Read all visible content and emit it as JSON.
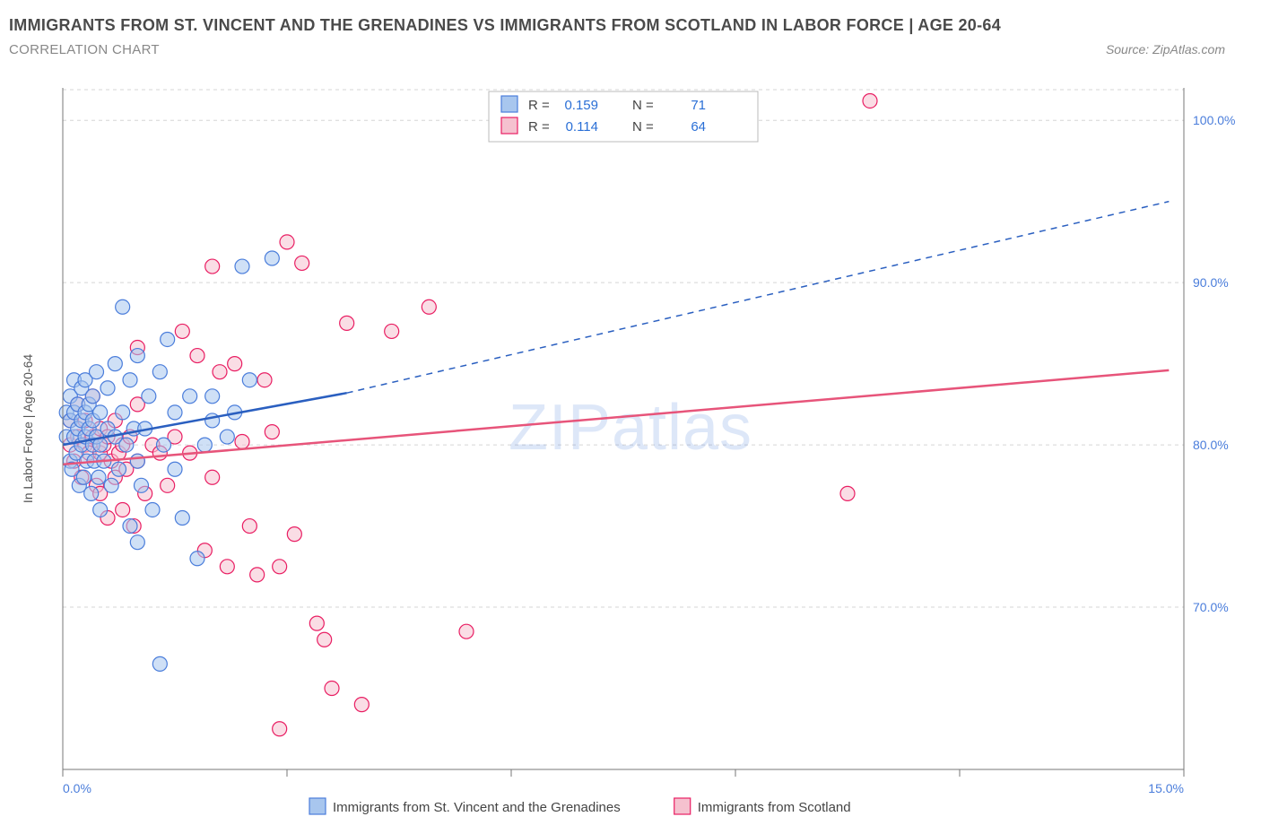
{
  "title": "IMMIGRANTS FROM ST. VINCENT AND THE GRENADINES VS IMMIGRANTS FROM SCOTLAND IN LABOR FORCE | AGE 20-64",
  "subtitle": "CORRELATION CHART",
  "source": "Source: ZipAtlas.com",
  "watermark": "ZIPatlas",
  "y_axis_label": "In Labor Force | Age 20-64",
  "colors": {
    "blue_fill": "#a8c6ee",
    "blue_stroke": "#4a7ddb",
    "blue_line": "#2a5fc0",
    "pink_fill": "#f5c1cf",
    "pink_stroke": "#e91e63",
    "pink_line": "#e7547a",
    "grid": "#d5d5d5",
    "axis": "#777777",
    "tick_text": "#4a7ddb",
    "title_text": "#4a4a4a",
    "sub_text": "#888888",
    "link_blue": "#2a6fd6"
  },
  "plot": {
    "x_domain": [
      0,
      15
    ],
    "y_domain": [
      60,
      102
    ],
    "x_ticks": [
      0,
      3,
      6,
      9,
      12,
      15
    ],
    "x_tick_labels_shown": {
      "0": "0.0%",
      "15": "15.0%"
    },
    "y_ticks": [
      70,
      80,
      90,
      100
    ],
    "y_tick_labels": {
      "70": "70.0%",
      "80": "80.0%",
      "90": "90.0%",
      "100": "100.0%"
    },
    "marker_radius": 8,
    "marker_opacity": 0.55,
    "line_width_solid": 2.5
  },
  "stats_legend": {
    "r_label": "R =",
    "n_label": "N =",
    "series": [
      {
        "key": "blue",
        "r": "0.159",
        "n": "71"
      },
      {
        "key": "pink",
        "r": "0.114",
        "n": "64"
      }
    ]
  },
  "bottom_legend": [
    {
      "key": "blue",
      "label": "Immigrants from St. Vincent and the Grenadines"
    },
    {
      "key": "pink",
      "label": "Immigrants from Scotland"
    }
  ],
  "trend_lines": {
    "blue": {
      "x1": 0.0,
      "y1": 80.0,
      "x2_solid": 3.8,
      "y2_solid": 83.2,
      "x2_dash": 14.8,
      "y2_dash": 95.0
    },
    "pink": {
      "x1": 0.0,
      "y1": 78.8,
      "x2_solid": 14.8,
      "y2_solid": 84.6
    }
  },
  "series": {
    "blue": [
      [
        0.05,
        80.5
      ],
      [
        0.05,
        82.0
      ],
      [
        0.1,
        79.0
      ],
      [
        0.1,
        81.5
      ],
      [
        0.1,
        83.0
      ],
      [
        0.12,
        78.5
      ],
      [
        0.15,
        80.5
      ],
      [
        0.15,
        82.0
      ],
      [
        0.15,
        84.0
      ],
      [
        0.18,
        79.5
      ],
      [
        0.2,
        81.0
      ],
      [
        0.2,
        82.5
      ],
      [
        0.22,
        77.5
      ],
      [
        0.25,
        80.0
      ],
      [
        0.25,
        81.5
      ],
      [
        0.25,
        83.5
      ],
      [
        0.28,
        78.0
      ],
      [
        0.3,
        80.5
      ],
      [
        0.3,
        82.0
      ],
      [
        0.3,
        84.0
      ],
      [
        0.32,
        79.0
      ],
      [
        0.35,
        81.0
      ],
      [
        0.35,
        82.5
      ],
      [
        0.38,
        77.0
      ],
      [
        0.4,
        80.0
      ],
      [
        0.4,
        81.5
      ],
      [
        0.4,
        83.0
      ],
      [
        0.42,
        79.0
      ],
      [
        0.45,
        80.5
      ],
      [
        0.45,
        84.5
      ],
      [
        0.48,
        78.0
      ],
      [
        0.5,
        76.0
      ],
      [
        0.5,
        80.0
      ],
      [
        0.5,
        82.0
      ],
      [
        0.55,
        79.0
      ],
      [
        0.6,
        81.0
      ],
      [
        0.6,
        83.5
      ],
      [
        0.65,
        77.5
      ],
      [
        0.7,
        80.5
      ],
      [
        0.7,
        85.0
      ],
      [
        0.75,
        78.5
      ],
      [
        0.8,
        82.0
      ],
      [
        0.8,
        88.5
      ],
      [
        0.85,
        80.0
      ],
      [
        0.9,
        75.0
      ],
      [
        0.9,
        84.0
      ],
      [
        0.95,
        81.0
      ],
      [
        1.0,
        79.0
      ],
      [
        1.0,
        85.5
      ],
      [
        1.05,
        77.5
      ],
      [
        1.1,
        81.0
      ],
      [
        1.15,
        83.0
      ],
      [
        1.2,
        76.0
      ],
      [
        1.3,
        84.5
      ],
      [
        1.35,
        80.0
      ],
      [
        1.4,
        86.5
      ],
      [
        1.5,
        78.5
      ],
      [
        1.5,
        82.0
      ],
      [
        1.6,
        75.5
      ],
      [
        1.7,
        83.0
      ],
      [
        1.8,
        73.0
      ],
      [
        1.9,
        80.0
      ],
      [
        2.0,
        81.5
      ],
      [
        2.0,
        83.0
      ],
      [
        2.2,
        80.5
      ],
      [
        2.3,
        82.0
      ],
      [
        2.4,
        91.0
      ],
      [
        2.5,
        84.0
      ],
      [
        2.8,
        91.5
      ],
      [
        1.3,
        66.5
      ],
      [
        1.0,
        74.0
      ]
    ],
    "pink": [
      [
        0.1,
        80.0
      ],
      [
        0.1,
        81.5
      ],
      [
        0.15,
        79.0
      ],
      [
        0.2,
        80.5
      ],
      [
        0.2,
        82.5
      ],
      [
        0.25,
        78.0
      ],
      [
        0.3,
        80.0
      ],
      [
        0.3,
        81.5
      ],
      [
        0.35,
        79.5
      ],
      [
        0.4,
        80.5
      ],
      [
        0.4,
        83.0
      ],
      [
        0.45,
        77.5
      ],
      [
        0.5,
        77.0
      ],
      [
        0.5,
        79.5
      ],
      [
        0.5,
        81.0
      ],
      [
        0.55,
        80.0
      ],
      [
        0.6,
        75.5
      ],
      [
        0.6,
        80.5
      ],
      [
        0.65,
        79.0
      ],
      [
        0.7,
        78.0
      ],
      [
        0.7,
        81.5
      ],
      [
        0.75,
        79.5
      ],
      [
        0.8,
        76.0
      ],
      [
        0.8,
        80.0
      ],
      [
        0.85,
        78.5
      ],
      [
        0.9,
        80.5
      ],
      [
        0.95,
        75.0
      ],
      [
        1.0,
        79.0
      ],
      [
        1.0,
        82.5
      ],
      [
        1.0,
        86.0
      ],
      [
        1.1,
        77.0
      ],
      [
        1.2,
        80.0
      ],
      [
        1.3,
        79.5
      ],
      [
        1.4,
        77.5
      ],
      [
        1.5,
        80.5
      ],
      [
        1.6,
        87.0
      ],
      [
        1.7,
        79.5
      ],
      [
        1.8,
        85.5
      ],
      [
        1.9,
        73.5
      ],
      [
        2.0,
        78.0
      ],
      [
        2.0,
        91.0
      ],
      [
        2.1,
        84.5
      ],
      [
        2.2,
        72.5
      ],
      [
        2.3,
        85.0
      ],
      [
        2.4,
        80.2
      ],
      [
        2.5,
        75.0
      ],
      [
        2.6,
        72.0
      ],
      [
        2.7,
        84.0
      ],
      [
        2.8,
        80.8
      ],
      [
        2.9,
        72.5
      ],
      [
        3.0,
        92.5
      ],
      [
        3.1,
        74.5
      ],
      [
        3.2,
        91.2
      ],
      [
        3.4,
        69.0
      ],
      [
        3.6,
        65.0
      ],
      [
        3.8,
        87.5
      ],
      [
        4.0,
        64.0
      ],
      [
        4.4,
        87.0
      ],
      [
        4.9,
        88.5
      ],
      [
        5.4,
        68.5
      ],
      [
        2.9,
        62.5
      ],
      [
        10.8,
        101.2
      ],
      [
        10.5,
        77.0
      ],
      [
        3.5,
        68.0
      ]
    ]
  }
}
